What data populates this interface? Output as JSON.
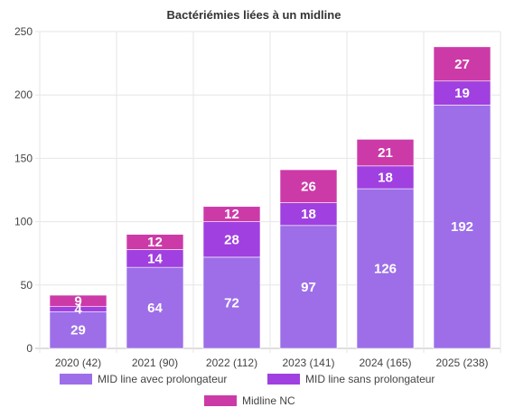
{
  "chart_data": {
    "type": "bar",
    "stacked": true,
    "title": "Bactériémies liées à un midline",
    "categories": [
      "2020 (42)",
      "2021 (90)",
      "2022 (112)",
      "2023 (141)",
      "2024 (165)",
      "2025 (238)"
    ],
    "series": [
      {
        "name": "MID line avec prolongateur",
        "values": [
          29,
          64,
          72,
          97,
          126,
          192
        ],
        "color": "#9d6ee8"
      },
      {
        "name": "MID line sans prolongateur",
        "values": [
          4,
          14,
          28,
          18,
          18,
          19
        ],
        "color": "#a040e0"
      },
      {
        "name": "Midline NC",
        "values": [
          9,
          12,
          12,
          26,
          21,
          27
        ],
        "color": "#cc3aa8"
      }
    ],
    "ylim": [
      0,
      250
    ],
    "yticks": [
      0,
      50,
      100,
      150,
      200,
      250
    ],
    "grid": true,
    "legend_position": "bottom"
  }
}
